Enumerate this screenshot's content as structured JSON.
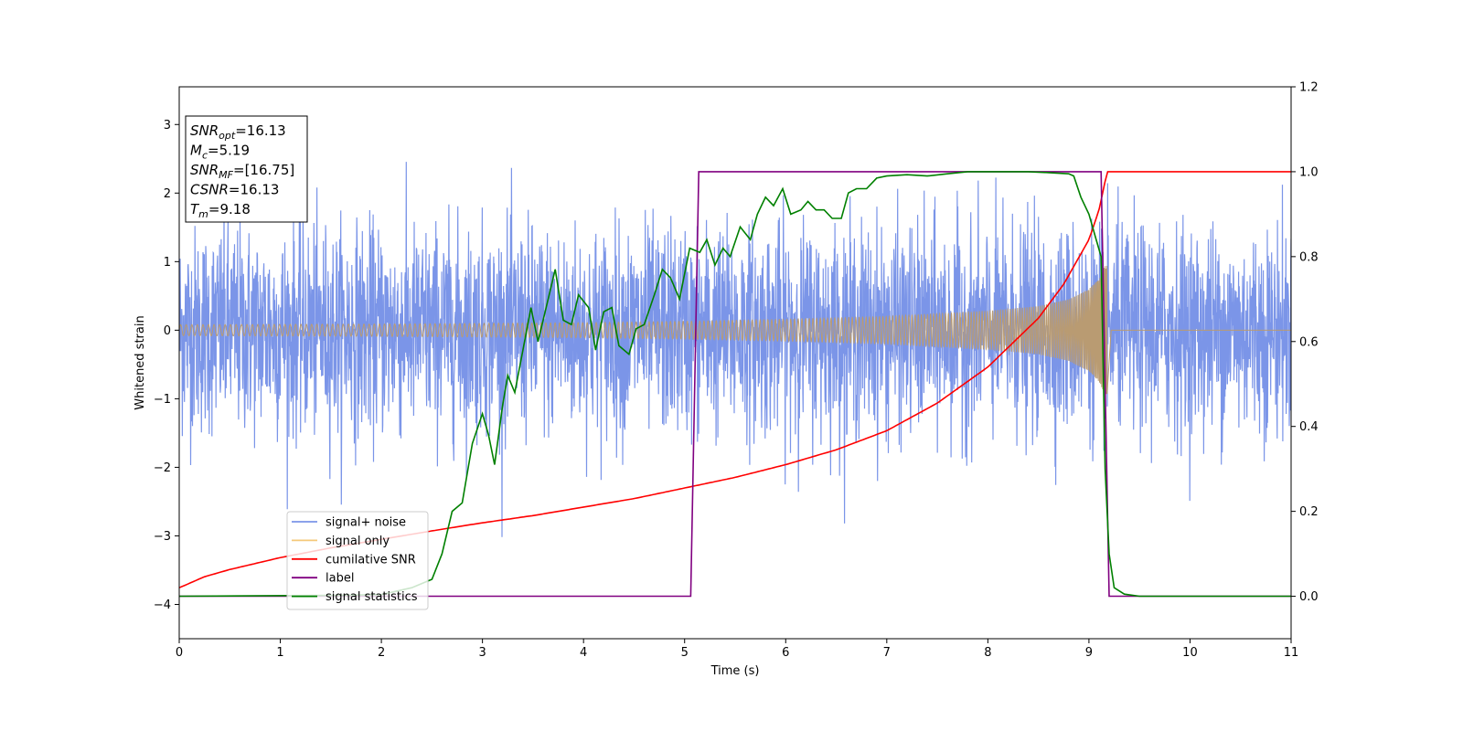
{
  "chart_data": {
    "type": "line",
    "xlabel": "Time (s)",
    "ylabel": "Whitened strain",
    "xlim": [
      0,
      11
    ],
    "ylim": [
      -4.5,
      3.55
    ],
    "y2lim": [
      -0.1,
      1.2
    ],
    "x_ticks": [
      0,
      1,
      2,
      3,
      4,
      5,
      6,
      7,
      8,
      9,
      10,
      11
    ],
    "y_ticks": [
      -4,
      -3,
      -2,
      -1,
      0,
      1,
      2,
      3
    ],
    "y2_ticks": [
      "0.0",
      "0.2",
      "0.4",
      "0.6",
      "0.8",
      "1.0",
      "1.2"
    ],
    "legend_position": "lower-left",
    "series": [
      {
        "name": "signal+ noise",
        "axis": "left",
        "color": "#7b95e8",
        "style": "noise",
        "sigma": 0.75,
        "span": [
          0,
          11
        ]
      },
      {
        "name": "signal only",
        "axis": "left",
        "color": "#f5c87a",
        "style": "chirp",
        "t_merge": 9.18,
        "envelope": [
          [
            0,
            0.08
          ],
          [
            2,
            0.09
          ],
          [
            4,
            0.11
          ],
          [
            5,
            0.13
          ],
          [
            6,
            0.16
          ],
          [
            7,
            0.2
          ],
          [
            8,
            0.28
          ],
          [
            8.5,
            0.35
          ],
          [
            8.8,
            0.45
          ],
          [
            9.0,
            0.6
          ],
          [
            9.1,
            0.75
          ],
          [
            9.18,
            1.0
          ]
        ]
      },
      {
        "name": "cumilative SNR",
        "axis": "right",
        "color": "#ff0000",
        "points": [
          [
            0,
            0.02
          ],
          [
            0.25,
            0.046
          ],
          [
            0.5,
            0.063
          ],
          [
            1,
            0.091
          ],
          [
            1.5,
            0.114
          ],
          [
            2,
            0.134
          ],
          [
            2.5,
            0.154
          ],
          [
            3,
            0.173
          ],
          [
            3.5,
            0.19
          ],
          [
            4,
            0.21
          ],
          [
            4.5,
            0.23
          ],
          [
            5,
            0.255
          ],
          [
            5.5,
            0.28
          ],
          [
            6,
            0.31
          ],
          [
            6.5,
            0.345
          ],
          [
            7,
            0.39
          ],
          [
            7.5,
            0.455
          ],
          [
            8,
            0.54
          ],
          [
            8.5,
            0.655
          ],
          [
            8.75,
            0.735
          ],
          [
            9,
            0.84
          ],
          [
            9.1,
            0.91
          ],
          [
            9.18,
            1.0
          ],
          [
            11,
            1.0
          ]
        ]
      },
      {
        "name": "label",
        "axis": "right",
        "color": "#800080",
        "points": [
          [
            0,
            0
          ],
          [
            5.06,
            0
          ],
          [
            5.14,
            1.0
          ],
          [
            9.12,
            1.0
          ],
          [
            9.2,
            0
          ],
          [
            11,
            0
          ]
        ]
      },
      {
        "name": "signal statistics",
        "axis": "right",
        "color": "#008000",
        "points": [
          [
            0,
            0.0
          ],
          [
            1.5,
            0.002
          ],
          [
            2.0,
            0.004
          ],
          [
            2.3,
            0.02
          ],
          [
            2.4,
            0.03
          ],
          [
            2.5,
            0.04
          ],
          [
            2.6,
            0.1
          ],
          [
            2.7,
            0.2
          ],
          [
            2.8,
            0.22
          ],
          [
            2.9,
            0.36
          ],
          [
            3.0,
            0.43
          ],
          [
            3.06,
            0.38
          ],
          [
            3.12,
            0.31
          ],
          [
            3.2,
            0.45
          ],
          [
            3.25,
            0.52
          ],
          [
            3.32,
            0.48
          ],
          [
            3.4,
            0.58
          ],
          [
            3.48,
            0.68
          ],
          [
            3.55,
            0.6
          ],
          [
            3.65,
            0.7
          ],
          [
            3.72,
            0.77
          ],
          [
            3.8,
            0.65
          ],
          [
            3.88,
            0.64
          ],
          [
            3.95,
            0.71
          ],
          [
            4.05,
            0.68
          ],
          [
            4.12,
            0.58
          ],
          [
            4.2,
            0.67
          ],
          [
            4.28,
            0.68
          ],
          [
            4.35,
            0.59
          ],
          [
            4.45,
            0.57
          ],
          [
            4.52,
            0.63
          ],
          [
            4.6,
            0.64
          ],
          [
            4.7,
            0.71
          ],
          [
            4.78,
            0.77
          ],
          [
            4.86,
            0.75
          ],
          [
            4.95,
            0.7
          ],
          [
            5.05,
            0.82
          ],
          [
            5.15,
            0.81
          ],
          [
            5.22,
            0.84
          ],
          [
            5.3,
            0.78
          ],
          [
            5.38,
            0.82
          ],
          [
            5.45,
            0.8
          ],
          [
            5.55,
            0.87
          ],
          [
            5.65,
            0.84
          ],
          [
            5.72,
            0.9
          ],
          [
            5.8,
            0.94
          ],
          [
            5.88,
            0.92
          ],
          [
            5.97,
            0.96
          ],
          [
            6.05,
            0.9
          ],
          [
            6.15,
            0.91
          ],
          [
            6.22,
            0.93
          ],
          [
            6.3,
            0.91
          ],
          [
            6.38,
            0.91
          ],
          [
            6.46,
            0.89
          ],
          [
            6.55,
            0.89
          ],
          [
            6.62,
            0.95
          ],
          [
            6.7,
            0.96
          ],
          [
            6.8,
            0.96
          ],
          [
            6.9,
            0.985
          ],
          [
            7.0,
            0.99
          ],
          [
            7.2,
            0.993
          ],
          [
            7.4,
            0.99
          ],
          [
            7.6,
            0.995
          ],
          [
            7.8,
            1.0
          ],
          [
            8.0,
            1.0
          ],
          [
            8.4,
            1.0
          ],
          [
            8.6,
            0.998
          ],
          [
            8.8,
            0.995
          ],
          [
            8.85,
            0.99
          ],
          [
            8.92,
            0.94
          ],
          [
            9.0,
            0.9
          ],
          [
            9.06,
            0.85
          ],
          [
            9.12,
            0.8
          ],
          [
            9.16,
            0.3
          ],
          [
            9.2,
            0.1
          ],
          [
            9.25,
            0.02
          ],
          [
            9.35,
            0.005
          ],
          [
            9.5,
            0.0
          ],
          [
            11,
            0.0
          ]
        ]
      }
    ]
  },
  "info_box": [
    {
      "main": "SNR",
      "sub": "opt",
      "rest": "=16.13"
    },
    {
      "main": "M",
      "sub": "c",
      "rest": "=5.19"
    },
    {
      "main": "SNR",
      "sub": "MF",
      "rest": "=[16.75]"
    },
    {
      "main": "CSNR",
      "sub": "",
      "rest": "=16.13"
    },
    {
      "main": "T",
      "sub": "m",
      "rest": "=9.18"
    }
  ]
}
